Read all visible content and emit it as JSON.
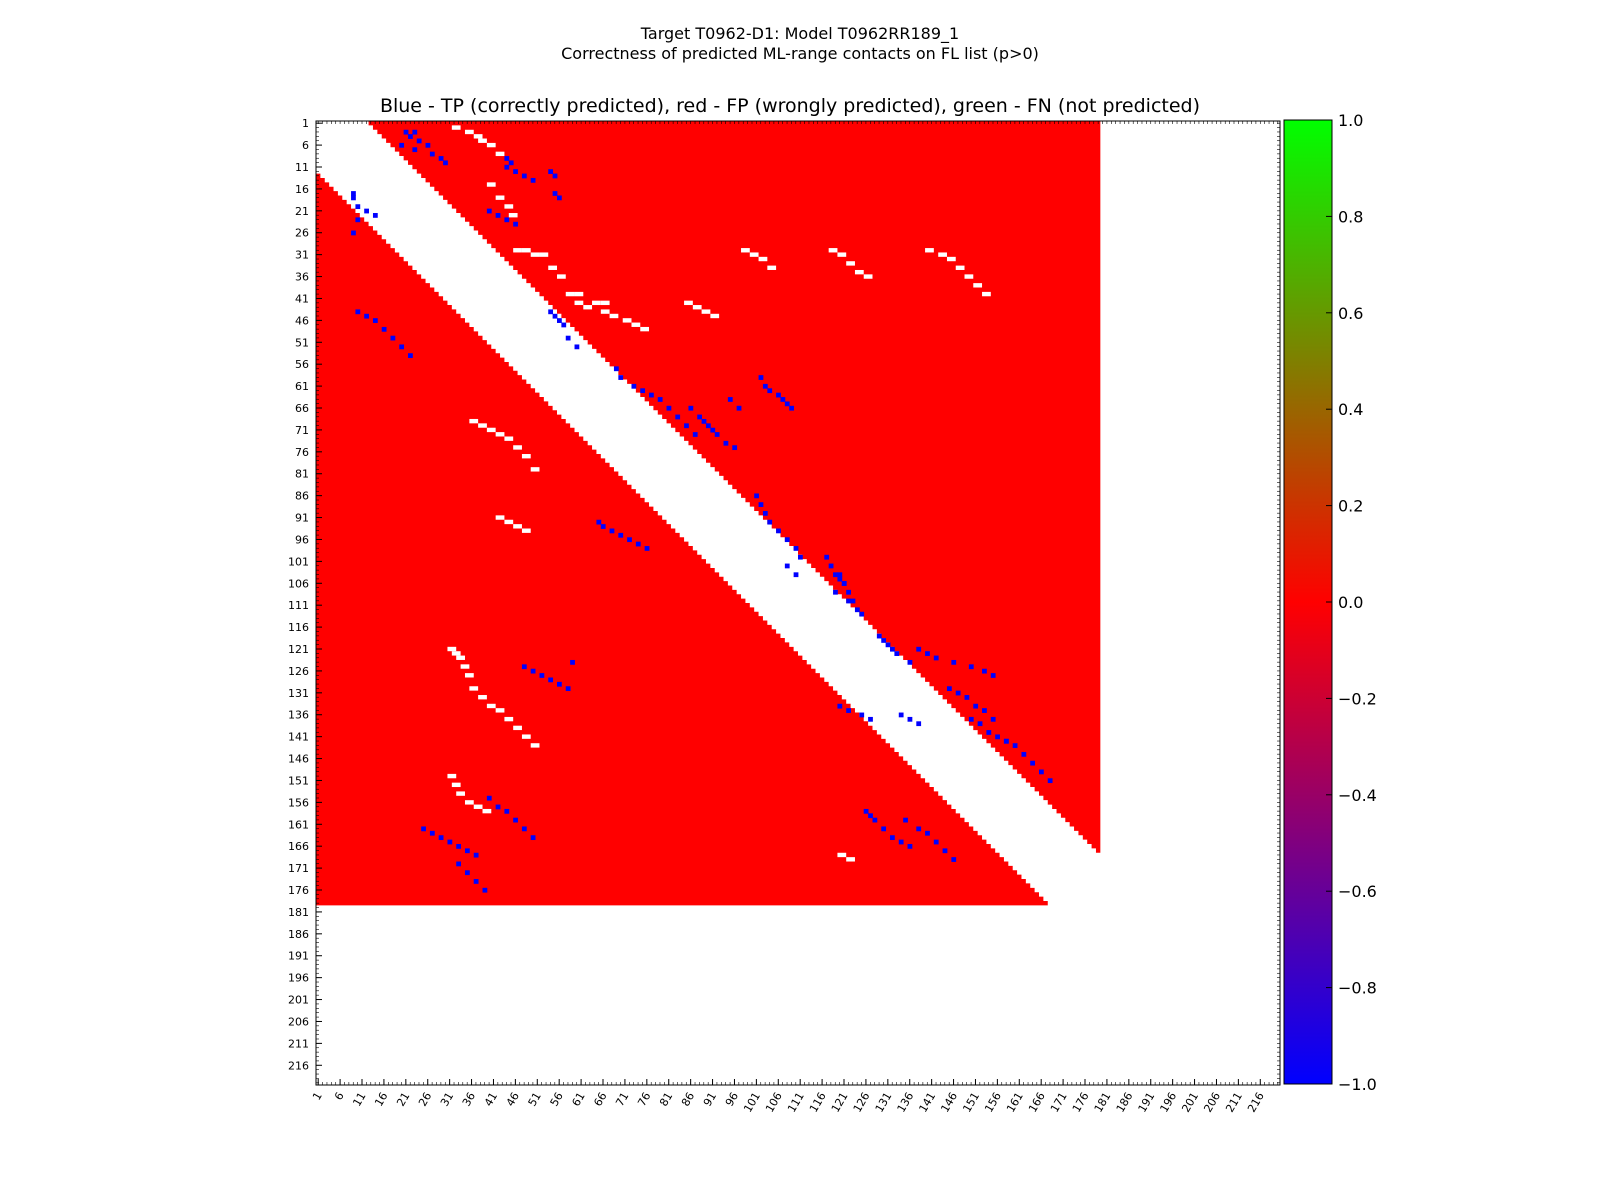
{
  "figure": {
    "title_line1": "Target T0962-D1: Model T0962RR189_1",
    "title_line2": "Correctness of predicted ML-range contacts on FL list (p>0)"
  },
  "colors": {
    "tp": "#0000ff",
    "fp": "#ff0000",
    "fn": "#00ff00",
    "background": "#ffffff"
  },
  "chart_data": {
    "type": "heatmap",
    "title": "Blue - TP (correctly predicted), red - FP (wrongly predicted), green - FN (not predicted)",
    "xlabel": "",
    "ylabel": "",
    "axis_range": [
      1,
      220
    ],
    "sequence_length": 179,
    "min_separation": 12,
    "upper_triangle_max_j": 179,
    "lower_triangle_max_i": 179,
    "tick_labels": [
      "1",
      "6",
      "11",
      "16",
      "21",
      "26",
      "31",
      "36",
      "41",
      "46",
      "51",
      "56",
      "61",
      "66",
      "71",
      "76",
      "81",
      "86",
      "91",
      "96",
      "101",
      "106",
      "111",
      "116",
      "121",
      "126",
      "131",
      "136",
      "141",
      "146",
      "151",
      "156",
      "161",
      "166",
      "171",
      "176",
      "181",
      "186",
      "191",
      "196",
      "201",
      "206",
      "211",
      "216"
    ],
    "colorbar": {
      "range": [
        -1.0,
        1.0
      ],
      "ticks": [
        "1.0",
        "0.8",
        "0.6",
        "0.4",
        "0.2",
        "0.0",
        "−0.2",
        "−0.4",
        "−0.6",
        "−0.8",
        "−1.0"
      ],
      "stops": [
        "#0000ff",
        "#ff0000",
        "#00ff00"
      ]
    },
    "default_value": 0.0,
    "tp_contacts": [
      [
        3,
        21
      ],
      [
        3,
        23
      ],
      [
        4,
        22
      ],
      [
        5,
        24
      ],
      [
        6,
        20
      ],
      [
        6,
        26
      ],
      [
        7,
        23
      ],
      [
        8,
        27
      ],
      [
        9,
        29
      ],
      [
        10,
        30
      ],
      [
        9,
        44
      ],
      [
        10,
        45
      ],
      [
        11,
        44
      ],
      [
        12,
        46
      ],
      [
        13,
        48
      ],
      [
        14,
        50
      ],
      [
        12,
        54
      ],
      [
        13,
        55
      ],
      [
        17,
        55
      ],
      [
        18,
        56
      ],
      [
        21,
        40
      ],
      [
        22,
        42
      ],
      [
        23,
        44
      ],
      [
        24,
        46
      ],
      [
        44,
        54
      ],
      [
        45,
        55
      ],
      [
        46,
        56
      ],
      [
        47,
        57
      ],
      [
        50,
        58
      ],
      [
        52,
        60
      ],
      [
        57,
        69
      ],
      [
        59,
        70
      ],
      [
        61,
        73
      ],
      [
        62,
        75
      ],
      [
        63,
        77
      ],
      [
        64,
        79
      ],
      [
        66,
        81
      ],
      [
        68,
        83
      ],
      [
        70,
        85
      ],
      [
        72,
        87
      ],
      [
        66,
        86
      ],
      [
        68,
        88
      ],
      [
        69,
        89
      ],
      [
        70,
        90
      ],
      [
        71,
        91
      ],
      [
        72,
        92
      ],
      [
        74,
        94
      ],
      [
        75,
        96
      ],
      [
        64,
        95
      ],
      [
        66,
        97
      ],
      [
        86,
        101
      ],
      [
        88,
        102
      ],
      [
        90,
        103
      ],
      [
        92,
        104
      ],
      [
        94,
        106
      ],
      [
        96,
        108
      ],
      [
        98,
        110
      ],
      [
        100,
        111
      ],
      [
        102,
        108
      ],
      [
        104,
        110
      ],
      [
        63,
        106
      ],
      [
        64,
        107
      ],
      [
        65,
        108
      ],
      [
        66,
        109
      ],
      [
        61,
        103
      ],
      [
        62,
        104
      ],
      [
        59,
        102
      ],
      [
        100,
        117
      ],
      [
        102,
        118
      ],
      [
        104,
        120
      ],
      [
        106,
        121
      ],
      [
        108,
        119
      ],
      [
        110,
        122
      ],
      [
        104,
        119
      ],
      [
        105,
        120
      ],
      [
        106,
        121
      ],
      [
        108,
        122
      ],
      [
        110,
        123
      ],
      [
        112,
        124
      ],
      [
        113,
        125
      ],
      [
        118,
        129
      ],
      [
        119,
        130
      ],
      [
        120,
        131
      ],
      [
        121,
        132
      ],
      [
        122,
        133
      ],
      [
        124,
        136
      ],
      [
        134,
        120
      ],
      [
        135,
        122
      ],
      [
        136,
        125
      ],
      [
        137,
        127
      ],
      [
        136,
        134
      ],
      [
        137,
        136
      ],
      [
        138,
        138
      ],
      [
        142,
        158
      ],
      [
        143,
        160
      ],
      [
        145,
        162
      ],
      [
        147,
        164
      ],
      [
        149,
        166
      ],
      [
        151,
        168
      ],
      [
        121,
        138
      ],
      [
        122,
        140
      ],
      [
        123,
        142
      ],
      [
        124,
        146
      ],
      [
        125,
        150
      ],
      [
        126,
        153
      ],
      [
        127,
        155
      ],
      [
        130,
        145
      ],
      [
        131,
        147
      ],
      [
        132,
        149
      ],
      [
        134,
        151
      ],
      [
        135,
        153
      ],
      [
        137,
        155
      ],
      [
        137,
        150
      ],
      [
        138,
        152
      ],
      [
        140,
        154
      ],
      [
        141,
        156
      ],
      [
        142,
        158
      ],
      [
        158,
        126
      ],
      [
        159,
        127
      ],
      [
        160,
        128
      ],
      [
        162,
        130
      ],
      [
        164,
        132
      ],
      [
        165,
        134
      ],
      [
        166,
        136
      ],
      [
        160,
        135
      ],
      [
        162,
        138
      ],
      [
        163,
        140
      ],
      [
        165,
        142
      ],
      [
        167,
        144
      ],
      [
        169,
        146
      ],
      [
        17,
        9
      ],
      [
        18,
        9
      ],
      [
        20,
        10
      ],
      [
        21,
        12
      ],
      [
        22,
        14
      ],
      [
        23,
        10
      ],
      [
        26,
        9
      ],
      [
        44,
        10
      ],
      [
        45,
        12
      ],
      [
        46,
        14
      ],
      [
        48,
        16
      ],
      [
        50,
        18
      ],
      [
        52,
        20
      ],
      [
        54,
        22
      ],
      [
        92,
        65
      ],
      [
        93,
        66
      ],
      [
        94,
        68
      ],
      [
        95,
        70
      ],
      [
        96,
        72
      ],
      [
        97,
        74
      ],
      [
        98,
        76
      ],
      [
        125,
        48
      ],
      [
        126,
        50
      ],
      [
        127,
        52
      ],
      [
        128,
        54
      ],
      [
        129,
        56
      ],
      [
        130,
        58
      ],
      [
        124,
        59
      ],
      [
        162,
        25
      ],
      [
        163,
        27
      ],
      [
        164,
        29
      ],
      [
        165,
        31
      ],
      [
        166,
        33
      ],
      [
        167,
        35
      ],
      [
        168,
        37
      ],
      [
        155,
        40
      ],
      [
        157,
        42
      ],
      [
        158,
        44
      ],
      [
        160,
        46
      ],
      [
        162,
        48
      ],
      [
        164,
        50
      ],
      [
        170,
        33
      ],
      [
        172,
        35
      ],
      [
        174,
        37
      ],
      [
        176,
        39
      ]
    ],
    "fn_contacts": [],
    "white_gaps": [
      [
        2,
        32
      ],
      [
        3,
        35
      ],
      [
        4,
        37
      ],
      [
        5,
        38
      ],
      [
        6,
        40
      ],
      [
        8,
        42
      ],
      [
        15,
        40
      ],
      [
        18,
        42
      ],
      [
        20,
        44
      ],
      [
        22,
        45
      ],
      [
        30,
        46
      ],
      [
        30,
        48
      ],
      [
        31,
        50
      ],
      [
        31,
        52
      ],
      [
        34,
        54
      ],
      [
        36,
        56
      ],
      [
        40,
        58
      ],
      [
        40,
        60
      ],
      [
        42,
        64
      ],
      [
        42,
        66
      ],
      [
        30,
        98
      ],
      [
        31,
        100
      ],
      [
        32,
        102
      ],
      [
        34,
        104
      ],
      [
        30,
        118
      ],
      [
        31,
        120
      ],
      [
        33,
        122
      ],
      [
        35,
        124
      ],
      [
        36,
        126
      ],
      [
        30,
        140
      ],
      [
        31,
        143
      ],
      [
        32,
        145
      ],
      [
        34,
        147
      ],
      [
        36,
        149
      ],
      [
        38,
        151
      ],
      [
        40,
        153
      ],
      [
        42,
        60
      ],
      [
        43,
        62
      ],
      [
        44,
        66
      ],
      [
        45,
        68
      ],
      [
        46,
        71
      ],
      [
        47,
        73
      ],
      [
        48,
        75
      ],
      [
        42,
        85
      ],
      [
        43,
        87
      ],
      [
        44,
        89
      ],
      [
        45,
        91
      ],
      [
        69,
        36
      ],
      [
        70,
        38
      ],
      [
        71,
        40
      ],
      [
        72,
        42
      ],
      [
        73,
        44
      ],
      [
        75,
        46
      ],
      [
        77,
        48
      ],
      [
        80,
        50
      ],
      [
        91,
        42
      ],
      [
        92,
        44
      ],
      [
        93,
        46
      ],
      [
        94,
        48
      ],
      [
        121,
        31
      ],
      [
        122,
        32
      ],
      [
        123,
        33
      ],
      [
        125,
        34
      ],
      [
        127,
        35
      ],
      [
        130,
        36
      ],
      [
        132,
        38
      ],
      [
        134,
        40
      ],
      [
        135,
        42
      ],
      [
        137,
        44
      ],
      [
        139,
        46
      ],
      [
        141,
        48
      ],
      [
        143,
        50
      ],
      [
        150,
        31
      ],
      [
        152,
        32
      ],
      [
        154,
        33
      ],
      [
        156,
        35
      ],
      [
        157,
        37
      ],
      [
        158,
        39
      ],
      [
        168,
        120
      ],
      [
        169,
        122
      ]
    ]
  }
}
